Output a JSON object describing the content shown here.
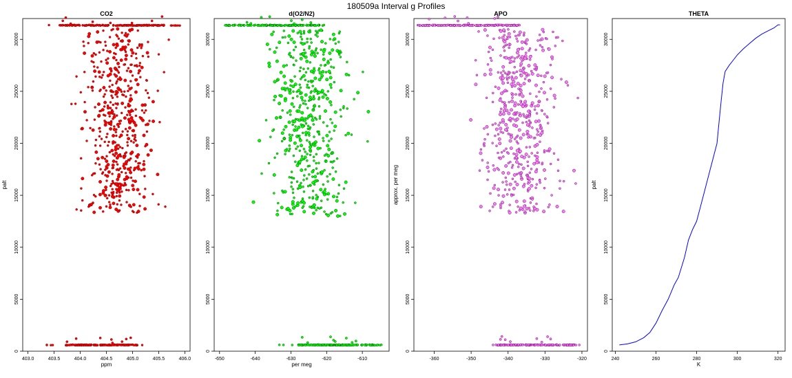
{
  "figure_title": "180509a   Interval g Profiles",
  "chart_data": [
    {
      "type": "scatter",
      "title": "CO2",
      "xlabel": "ppm",
      "ylabel": "palt",
      "xlim": [
        402.9,
        406.1
      ],
      "ylim": [
        0,
        32000
      ],
      "x_ticks": [
        403.0,
        403.5,
        404.0,
        404.5,
        405.0,
        405.5,
        406.0
      ],
      "x_tick_labels": [
        "403.0",
        "403.5",
        "404.0",
        "404.5",
        "405.0",
        "405.5",
        "406.0"
      ],
      "y_ticks": [
        0,
        5000,
        10000,
        15000,
        20000,
        25000,
        30000
      ],
      "y_tick_labels": [
        "0",
        "5000",
        "10000",
        "15000",
        "20000",
        "25000",
        "30000"
      ],
      "color": "#ff0000",
      "edge_color": "#8b0000",
      "clusters": [
        {
          "kind": "band",
          "y": 31350,
          "x_range": [
            403.1,
            406.0
          ],
          "dense_range": [
            403.6,
            405.6
          ]
        },
        {
          "kind": "cloud",
          "y_range": [
            13300,
            31000
          ],
          "x_center": 404.72,
          "x_spread": 0.32,
          "x_range": [
            403.5,
            405.9
          ]
        },
        {
          "kind": "band",
          "y": 600,
          "x_range": [
            403.0,
            405.4
          ],
          "dense_range": [
            403.7,
            405.1
          ]
        }
      ]
    },
    {
      "type": "scatter",
      "title": "d(O2/N2)",
      "xlabel": "per meg",
      "ylabel": "",
      "xlim": [
        -651.5,
        -602.5
      ],
      "ylim": [
        0,
        32000
      ],
      "x_ticks": [
        -650,
        -640,
        -630,
        -620,
        -610
      ],
      "x_tick_labels": [
        "-650",
        "-640",
        "-630",
        "-620",
        "-610"
      ],
      "y_ticks": [
        0,
        5000,
        10000,
        15000,
        20000,
        25000,
        30000
      ],
      "y_tick_labels": [
        "0",
        "5000",
        "10000",
        "15000",
        "20000",
        "25000",
        "30000"
      ],
      "color": "#00ff00",
      "edge_color": "#006400",
      "clusters": [
        {
          "kind": "band",
          "y": 31350,
          "x_range": [
            -650.0,
            -620.0
          ],
          "dense_range": [
            -649.0,
            -622.0
          ]
        },
        {
          "kind": "cloud",
          "y_range": [
            13000,
            31000
          ],
          "x_center": -625.0,
          "x_spread": 5.5,
          "x_range": [
            -641.0,
            -608.0
          ]
        },
        {
          "kind": "band",
          "y": 600,
          "x_range": [
            -634.0,
            -604.0
          ],
          "dense_range": [
            -628.0,
            -607.0
          ]
        }
      ]
    },
    {
      "type": "scatter",
      "title": "APO",
      "xlabel": "",
      "ylabel": "approx. per meg",
      "xlim": [
        -365.5,
        -318.5
      ],
      "ylim": [
        0,
        32000
      ],
      "x_ticks": [
        -360,
        -350,
        -340,
        -330,
        -320
      ],
      "x_tick_labels": [
        "-360",
        "-350",
        "-340",
        "-330",
        "-320"
      ],
      "y_ticks": [
        0,
        5000,
        10000,
        15000,
        20000,
        25000,
        30000
      ],
      "y_tick_labels": [
        "0",
        "5000",
        "10000",
        "15000",
        "20000",
        "25000",
        "30000"
      ],
      "color": "#ee82ee",
      "edge_color": "#8b008b",
      "clusters": [
        {
          "kind": "band",
          "y": 31350,
          "x_range": [
            -364.5,
            -335.0
          ],
          "dense_range": [
            -364.0,
            -337.0
          ]
        },
        {
          "kind": "cloud",
          "y_range": [
            13300,
            31000
          ],
          "x_center": -337.0,
          "x_spread": 5.0,
          "x_range": [
            -353.0,
            -321.0
          ]
        },
        {
          "kind": "band",
          "y": 600,
          "x_range": [
            -346.0,
            -320.5
          ],
          "dense_range": [
            -343.0,
            -322.0
          ]
        }
      ]
    },
    {
      "type": "line",
      "title": "THETA",
      "xlabel": "K",
      "ylabel": "palt",
      "xlim": [
        238.5,
        323.5
      ],
      "ylim": [
        0,
        32000
      ],
      "x_ticks": [
        240,
        260,
        280,
        300,
        320
      ],
      "x_tick_labels": [
        "240",
        "260",
        "280",
        "300",
        "320"
      ],
      "y_ticks": [
        0,
        5000,
        10000,
        15000,
        20000,
        25000,
        30000
      ],
      "y_tick_labels": [
        "0",
        "5000",
        "10000",
        "15000",
        "20000",
        "25000",
        "30000"
      ],
      "color": "#0000ff",
      "series": [
        {
          "x": [
            242,
            246,
            250,
            254,
            257,
            260,
            263,
            266,
            269,
            271,
            274,
            276,
            278,
            280,
            282,
            284,
            286,
            288,
            290,
            291,
            292,
            293,
            294,
            296,
            298,
            300,
            303,
            306,
            309,
            312,
            315,
            318,
            320,
            321
          ],
          "y": [
            600,
            700,
            900,
            1300,
            1800,
            2700,
            3900,
            5000,
            6400,
            7100,
            9000,
            10700,
            11700,
            12500,
            14000,
            15500,
            17000,
            18500,
            20000,
            22000,
            24000,
            25800,
            26900,
            27500,
            28000,
            28500,
            29100,
            29600,
            30100,
            30500,
            30800,
            31100,
            31400,
            31400
          ]
        }
      ]
    }
  ]
}
